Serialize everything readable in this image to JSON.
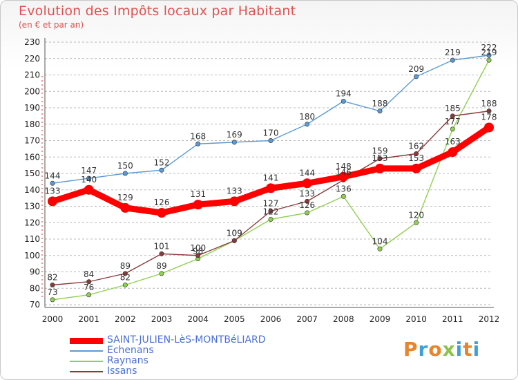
{
  "header": {
    "title": "Evolution des Impôts locaux par Habitant",
    "subtitle": "(en € et par an)"
  },
  "brand": {
    "letters": [
      "P",
      "r",
      "o",
      "x",
      "i",
      "t",
      "i"
    ],
    "colors": [
      "#e8842a",
      "#3fa0d8",
      "#e8842a",
      "#8bc34a",
      "#3fa0d8",
      "#e8842a",
      "#3fa0d8"
    ]
  },
  "chart_data": {
    "type": "line",
    "title": "Evolution des Impôts locaux par Habitant",
    "subtitle": "(en € et par an)",
    "xlabel": "",
    "ylabel": "",
    "ylim": [
      70,
      230
    ],
    "yticks": [
      70,
      80,
      90,
      100,
      110,
      120,
      130,
      140,
      150,
      160,
      170,
      180,
      190,
      200,
      210,
      220,
      230
    ],
    "grid": "horizontal-dashed",
    "legend_position": "bottom-left",
    "x": [
      "2000",
      "2001",
      "2002",
      "2003",
      "2004",
      "2005",
      "2006",
      "2007",
      "2008",
      "2009",
      "2010",
      "2011",
      "2012"
    ],
    "series": [
      {
        "name": "Echenans",
        "color": "#5b9bd5",
        "values": [
          144,
          147,
          150,
          152,
          168,
          169,
          170,
          180,
          194,
          188,
          209,
          219,
          222
        ],
        "labels": [
          "144",
          "147",
          "150",
          "152",
          "168",
          "169",
          "170",
          "180",
          "194",
          "188",
          "209",
          "219",
          "222"
        ]
      },
      {
        "name": "Raynans",
        "color": "#8fd14f",
        "values": [
          73,
          76,
          82,
          89,
          98,
          109,
          122,
          126,
          136,
          104,
          120,
          177,
          219
        ],
        "labels": [
          "73",
          "76",
          "82",
          "89",
          "98",
          "109",
          "122",
          "126",
          "136",
          "104",
          "120",
          "177",
          "219"
        ]
      },
      {
        "name": "Issans",
        "color": "#8b3a3a",
        "values": [
          82,
          84,
          89,
          101,
          100,
          109,
          127,
          133,
          146,
          159,
          162,
          185,
          188
        ],
        "labels": [
          "82",
          "84",
          "89",
          "101",
          "100",
          "109",
          "127",
          "133",
          "146",
          "159",
          "162",
          "185",
          "188"
        ]
      },
      {
        "name": "SAINT-JULIEN-LèS-MONTBéLIARD",
        "color": "#ff0000",
        "values": [
          133,
          140,
          129,
          126,
          131,
          133,
          141,
          144,
          148,
          153,
          153,
          163,
          178
        ],
        "labels": [
          "133",
          "140",
          "129",
          "126",
          "131",
          "133",
          "141",
          "144",
          "148",
          "153",
          "153",
          "163",
          "178"
        ]
      }
    ],
    "legend": [
      {
        "name": "SAINT-JULIEN-LèS-MONTBéLIARD",
        "color": "#ff0000",
        "text_color": "#4a6fd8"
      },
      {
        "name": "Echenans",
        "color": "#5b9bd5",
        "text_color": "#4a6fd8"
      },
      {
        "name": "Raynans",
        "color": "#8fd14f",
        "text_color": "#4a6fd8"
      },
      {
        "name": "Issans",
        "color": "#8b3a3a",
        "text_color": "#4a6fd8"
      }
    ]
  }
}
